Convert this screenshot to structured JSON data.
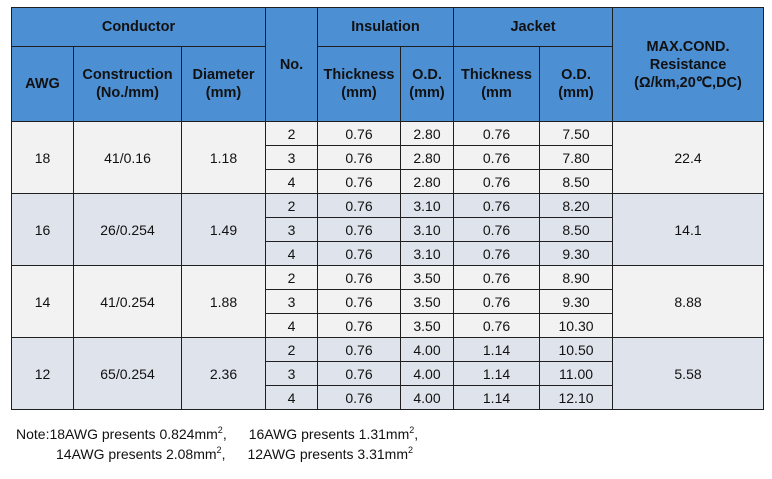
{
  "header": {
    "conductor": "Conductor",
    "insulation": "Insulation",
    "jacket": "Jacket",
    "max_cond_1": "MAX.COND.",
    "max_cond_2": "Resistance",
    "max_cond_3": "(Ω/km,20℃,DC)",
    "awg": "AWG",
    "construction_1": "Construction",
    "construction_2": "(No./mm)",
    "diameter_1": "Diameter",
    "diameter_2": "(mm)",
    "no": "No.",
    "ins_thickness_1": "Thickness",
    "ins_thickness_2": "(mm)",
    "ins_od_1": "O.D.",
    "ins_od_2": "(mm)",
    "jk_thickness_1": "Thickness",
    "jk_thickness_2": "(mm",
    "jk_od_1": "O.D.",
    "jk_od_2": "(mm)"
  },
  "groups": [
    {
      "awg": "18",
      "construction": "41/0.16",
      "diameter": "1.18",
      "resistance": "22.4",
      "rows": [
        {
          "no": "2",
          "ins_th": "0.76",
          "ins_od": "2.80",
          "jk_th": "0.76",
          "jk_od": "7.50"
        },
        {
          "no": "3",
          "ins_th": "0.76",
          "ins_od": "2.80",
          "jk_th": "0.76",
          "jk_od": "7.80"
        },
        {
          "no": "4",
          "ins_th": "0.76",
          "ins_od": "2.80",
          "jk_th": "0.76",
          "jk_od": "8.50"
        }
      ]
    },
    {
      "awg": "16",
      "construction": "26/0.254",
      "diameter": "1.49",
      "resistance": "14.1",
      "rows": [
        {
          "no": "2",
          "ins_th": "0.76",
          "ins_od": "3.10",
          "jk_th": "0.76",
          "jk_od": "8.20"
        },
        {
          "no": "3",
          "ins_th": "0.76",
          "ins_od": "3.10",
          "jk_th": "0.76",
          "jk_od": "8.50"
        },
        {
          "no": "4",
          "ins_th": "0.76",
          "ins_od": "3.10",
          "jk_th": "0.76",
          "jk_od": "9.30"
        }
      ]
    },
    {
      "awg": "14",
      "construction": "41/0.254",
      "diameter": "1.88",
      "resistance": "8.88",
      "rows": [
        {
          "no": "2",
          "ins_th": "0.76",
          "ins_od": "3.50",
          "jk_th": "0.76",
          "jk_od": "8.90"
        },
        {
          "no": "3",
          "ins_th": "0.76",
          "ins_od": "3.50",
          "jk_th": "0.76",
          "jk_od": "9.30"
        },
        {
          "no": "4",
          "ins_th": "0.76",
          "ins_od": "3.50",
          "jk_th": "0.76",
          "jk_od": "10.30"
        }
      ]
    },
    {
      "awg": "12",
      "construction": "65/0.254",
      "diameter": "2.36",
      "resistance": "5.58",
      "rows": [
        {
          "no": "2",
          "ins_th": "0.76",
          "ins_od": "4.00",
          "jk_th": "1.14",
          "jk_od": "10.50"
        },
        {
          "no": "3",
          "ins_th": "0.76",
          "ins_od": "4.00",
          "jk_th": "1.14",
          "jk_od": "11.00"
        },
        {
          "no": "4",
          "ins_th": "0.76",
          "ins_od": "4.00",
          "jk_th": "1.14",
          "jk_od": "12.10"
        }
      ]
    }
  ],
  "note": {
    "prefix": "Note:",
    "n18": "18AWG presents 0.824mm",
    "n16": "16AWG presents 1.31mm",
    "n14": "14AWG presents 2.08mm",
    "n12": "12AWG presents 3.31mm",
    "sup": "2",
    "sep": ","
  },
  "colors": {
    "header_bg": "#4d8fd3",
    "row_light": "#f2f2f2",
    "row_blue": "#dfe4ec",
    "border": "#1f1f1f"
  }
}
